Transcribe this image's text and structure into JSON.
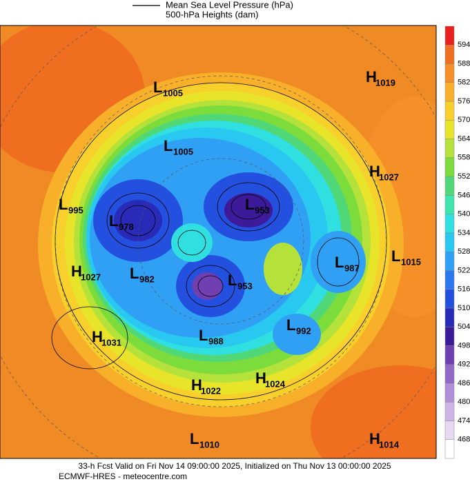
{
  "legend": {
    "items": [
      "Mean Sea Level Pressure (hPa)",
      "500-hPa Heights (dam)"
    ]
  },
  "colorbar": {
    "ticks": [
      468,
      474,
      480,
      486,
      492,
      498,
      504,
      510,
      516,
      522,
      528,
      534,
      540,
      546,
      552,
      558,
      564,
      570,
      576,
      582,
      588,
      594
    ],
    "colors": [
      "#ffffff",
      "#e6d8f0",
      "#cdb4e6",
      "#b08fd8",
      "#9268c8",
      "#7040b0",
      "#3c1a9a",
      "#2a2ab8",
      "#2450e0",
      "#2c78f0",
      "#30a0f5",
      "#28c8f0",
      "#30e0e0",
      "#40e6b0",
      "#50d878",
      "#7cdc3c",
      "#b4e23a",
      "#e8e42a",
      "#f8d02c",
      "#f8b02a",
      "#f59028",
      "#f06e20",
      "#e8201e"
    ]
  },
  "centers": [
    {
      "type": "L",
      "value": 1005
    },
    {
      "type": "H",
      "value": 1019
    },
    {
      "type": "L",
      "value": 1005
    },
    {
      "type": "H",
      "value": 1027
    },
    {
      "type": "L",
      "value": 995
    },
    {
      "type": "L",
      "value": 953
    },
    {
      "type": "L",
      "value": 978
    },
    {
      "type": "L",
      "value": 987
    },
    {
      "type": "L",
      "value": 1015
    },
    {
      "type": "H",
      "value": 1027
    },
    {
      "type": "L",
      "value": 982
    },
    {
      "type": "L",
      "value": 953
    },
    {
      "type": "L",
      "value": 992
    },
    {
      "type": "H",
      "value": 1031
    },
    {
      "type": "L",
      "value": 988
    },
    {
      "type": "H",
      "value": 1024
    },
    {
      "type": "H",
      "value": 1022
    },
    {
      "type": "L",
      "value": 1010
    },
    {
      "type": "H",
      "value": 1014
    }
  ],
  "footer": [
    "33-h Fcst Valid on Fri Nov 14 09:00:00 2025, Initialized on Thu Nov 13 00:00:00 2025",
    "ECMWF-HRES - meteocentre.com"
  ]
}
